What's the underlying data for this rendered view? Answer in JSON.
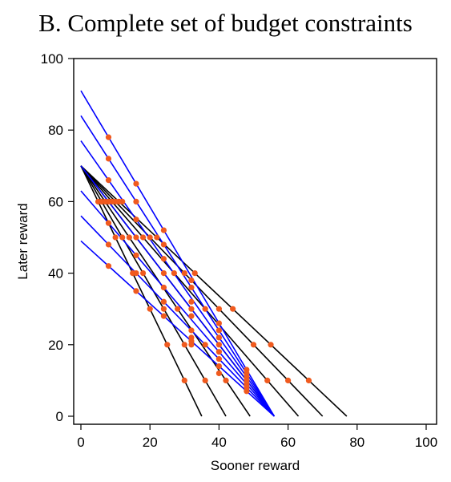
{
  "chart_data": {
    "type": "line",
    "title": "B.   Complete set of budget constraints",
    "xlabel": "Sooner reward",
    "ylabel": "Later reward",
    "xlim": [
      0,
      100
    ],
    "ylim": [
      0,
      100
    ],
    "xticks": [
      0,
      20,
      40,
      60,
      80,
      100
    ],
    "yticks": [
      0,
      20,
      40,
      60,
      80,
      100
    ],
    "grid": false,
    "colors": {
      "pivot_lines": "#000000",
      "shift_lines": "#0000ff",
      "points": "#f05a1e"
    },
    "series": [
      {
        "group": "pivot_lines",
        "points": [
          [
            0,
            70
          ],
          [
            35,
            0
          ]
        ]
      },
      {
        "group": "pivot_lines",
        "points": [
          [
            0,
            70
          ],
          [
            42,
            0
          ]
        ]
      },
      {
        "group": "pivot_lines",
        "points": [
          [
            0,
            70
          ],
          [
            49,
            0
          ]
        ]
      },
      {
        "group": "pivot_lines",
        "points": [
          [
            0,
            70
          ],
          [
            56,
            0
          ]
        ]
      },
      {
        "group": "pivot_lines",
        "points": [
          [
            0,
            70
          ],
          [
            63,
            0
          ]
        ]
      },
      {
        "group": "pivot_lines",
        "points": [
          [
            0,
            70
          ],
          [
            70,
            0
          ]
        ]
      },
      {
        "group": "pivot_lines",
        "points": [
          [
            0,
            70
          ],
          [
            77,
            0
          ]
        ]
      },
      {
        "group": "shift_lines",
        "points": [
          [
            0,
            91
          ],
          [
            56,
            0
          ]
        ]
      },
      {
        "group": "shift_lines",
        "points": [
          [
            0,
            84
          ],
          [
            56,
            0
          ]
        ]
      },
      {
        "group": "shift_lines",
        "points": [
          [
            0,
            77
          ],
          [
            56,
            0
          ]
        ]
      },
      {
        "group": "shift_lines",
        "points": [
          [
            0,
            70
          ],
          [
            56,
            0
          ]
        ]
      },
      {
        "group": "shift_lines",
        "points": [
          [
            0,
            63
          ],
          [
            56,
            0
          ]
        ]
      },
      {
        "group": "shift_lines",
        "points": [
          [
            0,
            56
          ],
          [
            56,
            0
          ]
        ]
      },
      {
        "group": "shift_lines",
        "points": [
          [
            0,
            49
          ],
          [
            56,
            0
          ]
        ]
      }
    ],
    "scatter_points": [
      [
        8,
        78
      ],
      [
        8,
        72
      ],
      [
        8,
        66
      ],
      [
        16,
        65
      ],
      [
        16,
        60
      ],
      [
        16,
        55
      ],
      [
        24,
        52
      ],
      [
        24,
        48
      ],
      [
        24,
        44
      ],
      [
        8,
        60
      ],
      [
        8,
        54
      ],
      [
        8,
        48
      ],
      [
        8,
        42
      ],
      [
        5,
        60
      ],
      [
        6,
        60
      ],
      [
        7,
        60
      ],
      [
        9,
        60
      ],
      [
        10,
        60
      ],
      [
        11,
        60
      ],
      [
        12,
        60
      ],
      [
        10,
        50
      ],
      [
        12,
        50
      ],
      [
        14,
        50
      ],
      [
        16,
        50
      ],
      [
        18,
        50
      ],
      [
        20,
        50
      ],
      [
        22,
        50
      ],
      [
        15,
        40
      ],
      [
        16,
        40
      ],
      [
        18,
        40
      ],
      [
        24,
        40
      ],
      [
        27,
        40
      ],
      [
        30,
        40
      ],
      [
        33,
        40
      ],
      [
        16,
        45
      ],
      [
        16,
        35
      ],
      [
        20,
        30
      ],
      [
        24,
        32
      ],
      [
        24,
        30
      ],
      [
        24,
        28
      ],
      [
        25,
        20
      ],
      [
        30,
        20
      ],
      [
        30,
        10
      ],
      [
        36,
        10
      ],
      [
        24,
        36
      ],
      [
        32,
        38
      ],
      [
        32,
        36
      ],
      [
        32,
        32
      ],
      [
        32,
        30
      ],
      [
        32,
        28
      ],
      [
        32,
        24
      ],
      [
        32,
        22
      ],
      [
        32,
        21
      ],
      [
        32,
        20
      ],
      [
        28,
        30
      ],
      [
        36,
        30
      ],
      [
        40,
        30
      ],
      [
        44,
        30
      ],
      [
        36,
        20
      ],
      [
        40,
        26
      ],
      [
        40,
        24
      ],
      [
        40,
        22
      ],
      [
        40,
        20
      ],
      [
        40,
        18
      ],
      [
        40,
        16
      ],
      [
        40,
        14
      ],
      [
        40,
        12
      ],
      [
        42,
        10
      ],
      [
        48,
        13
      ],
      [
        48,
        12
      ],
      [
        48,
        11
      ],
      [
        48,
        10
      ],
      [
        48,
        9
      ],
      [
        48,
        8
      ],
      [
        48,
        7
      ],
      [
        50,
        20
      ],
      [
        55,
        20
      ],
      [
        54,
        10
      ],
      [
        60,
        10
      ],
      [
        66,
        10
      ]
    ]
  }
}
